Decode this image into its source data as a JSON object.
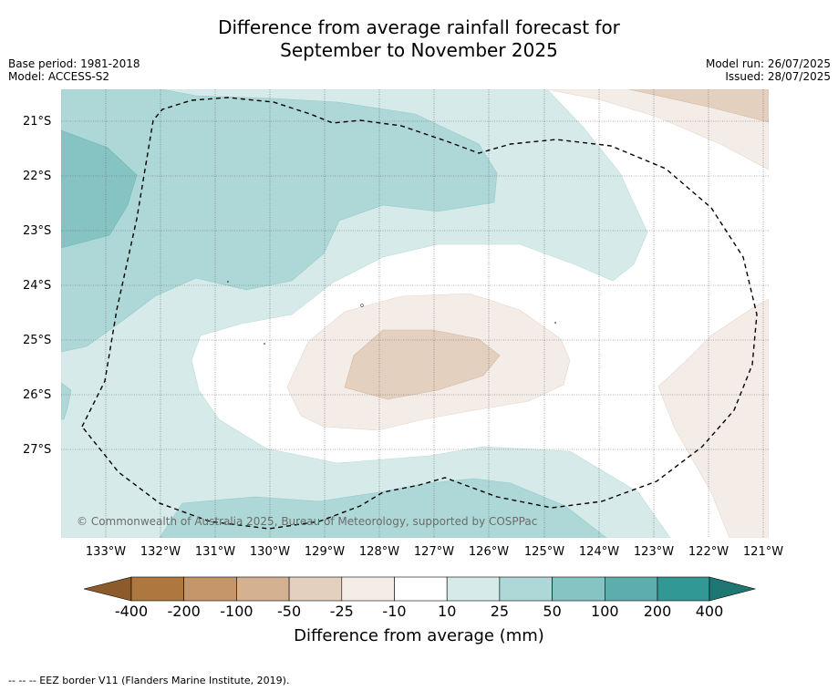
{
  "title_line1": "Difference from average rainfall forecast for",
  "title_line2": "September to November 2025",
  "base_period": "Base period: 1981-2018",
  "model": "Model: ACCESS-S2",
  "model_run": "Model run: 26/07/2025",
  "issued": "Issued: 28/07/2025",
  "copyright": "© Commonwealth of Australia 2025, Bureau of Meteorology, supported by COSPPac",
  "lat_labels": [
    "21°S",
    "22°S",
    "23°S",
    "24°S",
    "25°S",
    "26°S",
    "27°S"
  ],
  "lon_labels": [
    "133°W",
    "132°W",
    "131°W",
    "130°W",
    "129°W",
    "128°W",
    "127°W",
    "126°W",
    "125°W",
    "124°W",
    "123°W",
    "122°W",
    "121°W"
  ],
  "colorbar": {
    "title": "Difference from average (mm)",
    "labels": [
      "-400",
      "-200",
      "-100",
      "-50",
      "-25",
      "-10",
      "10",
      "25",
      "50",
      "100",
      "200",
      "400"
    ],
    "colors": [
      "#8c5a2b",
      "#ae773f",
      "#c4966a",
      "#d4b191",
      "#e4d0be",
      "#f4ede7",
      "#ffffff",
      "#d6ebe9",
      "#aed8d7",
      "#86c4c3",
      "#5eadad",
      "#329896",
      "#1f7774"
    ]
  },
  "footnote": "-- -- -- EEZ border V11 (Flanders Marine Institute, 2019)."
}
